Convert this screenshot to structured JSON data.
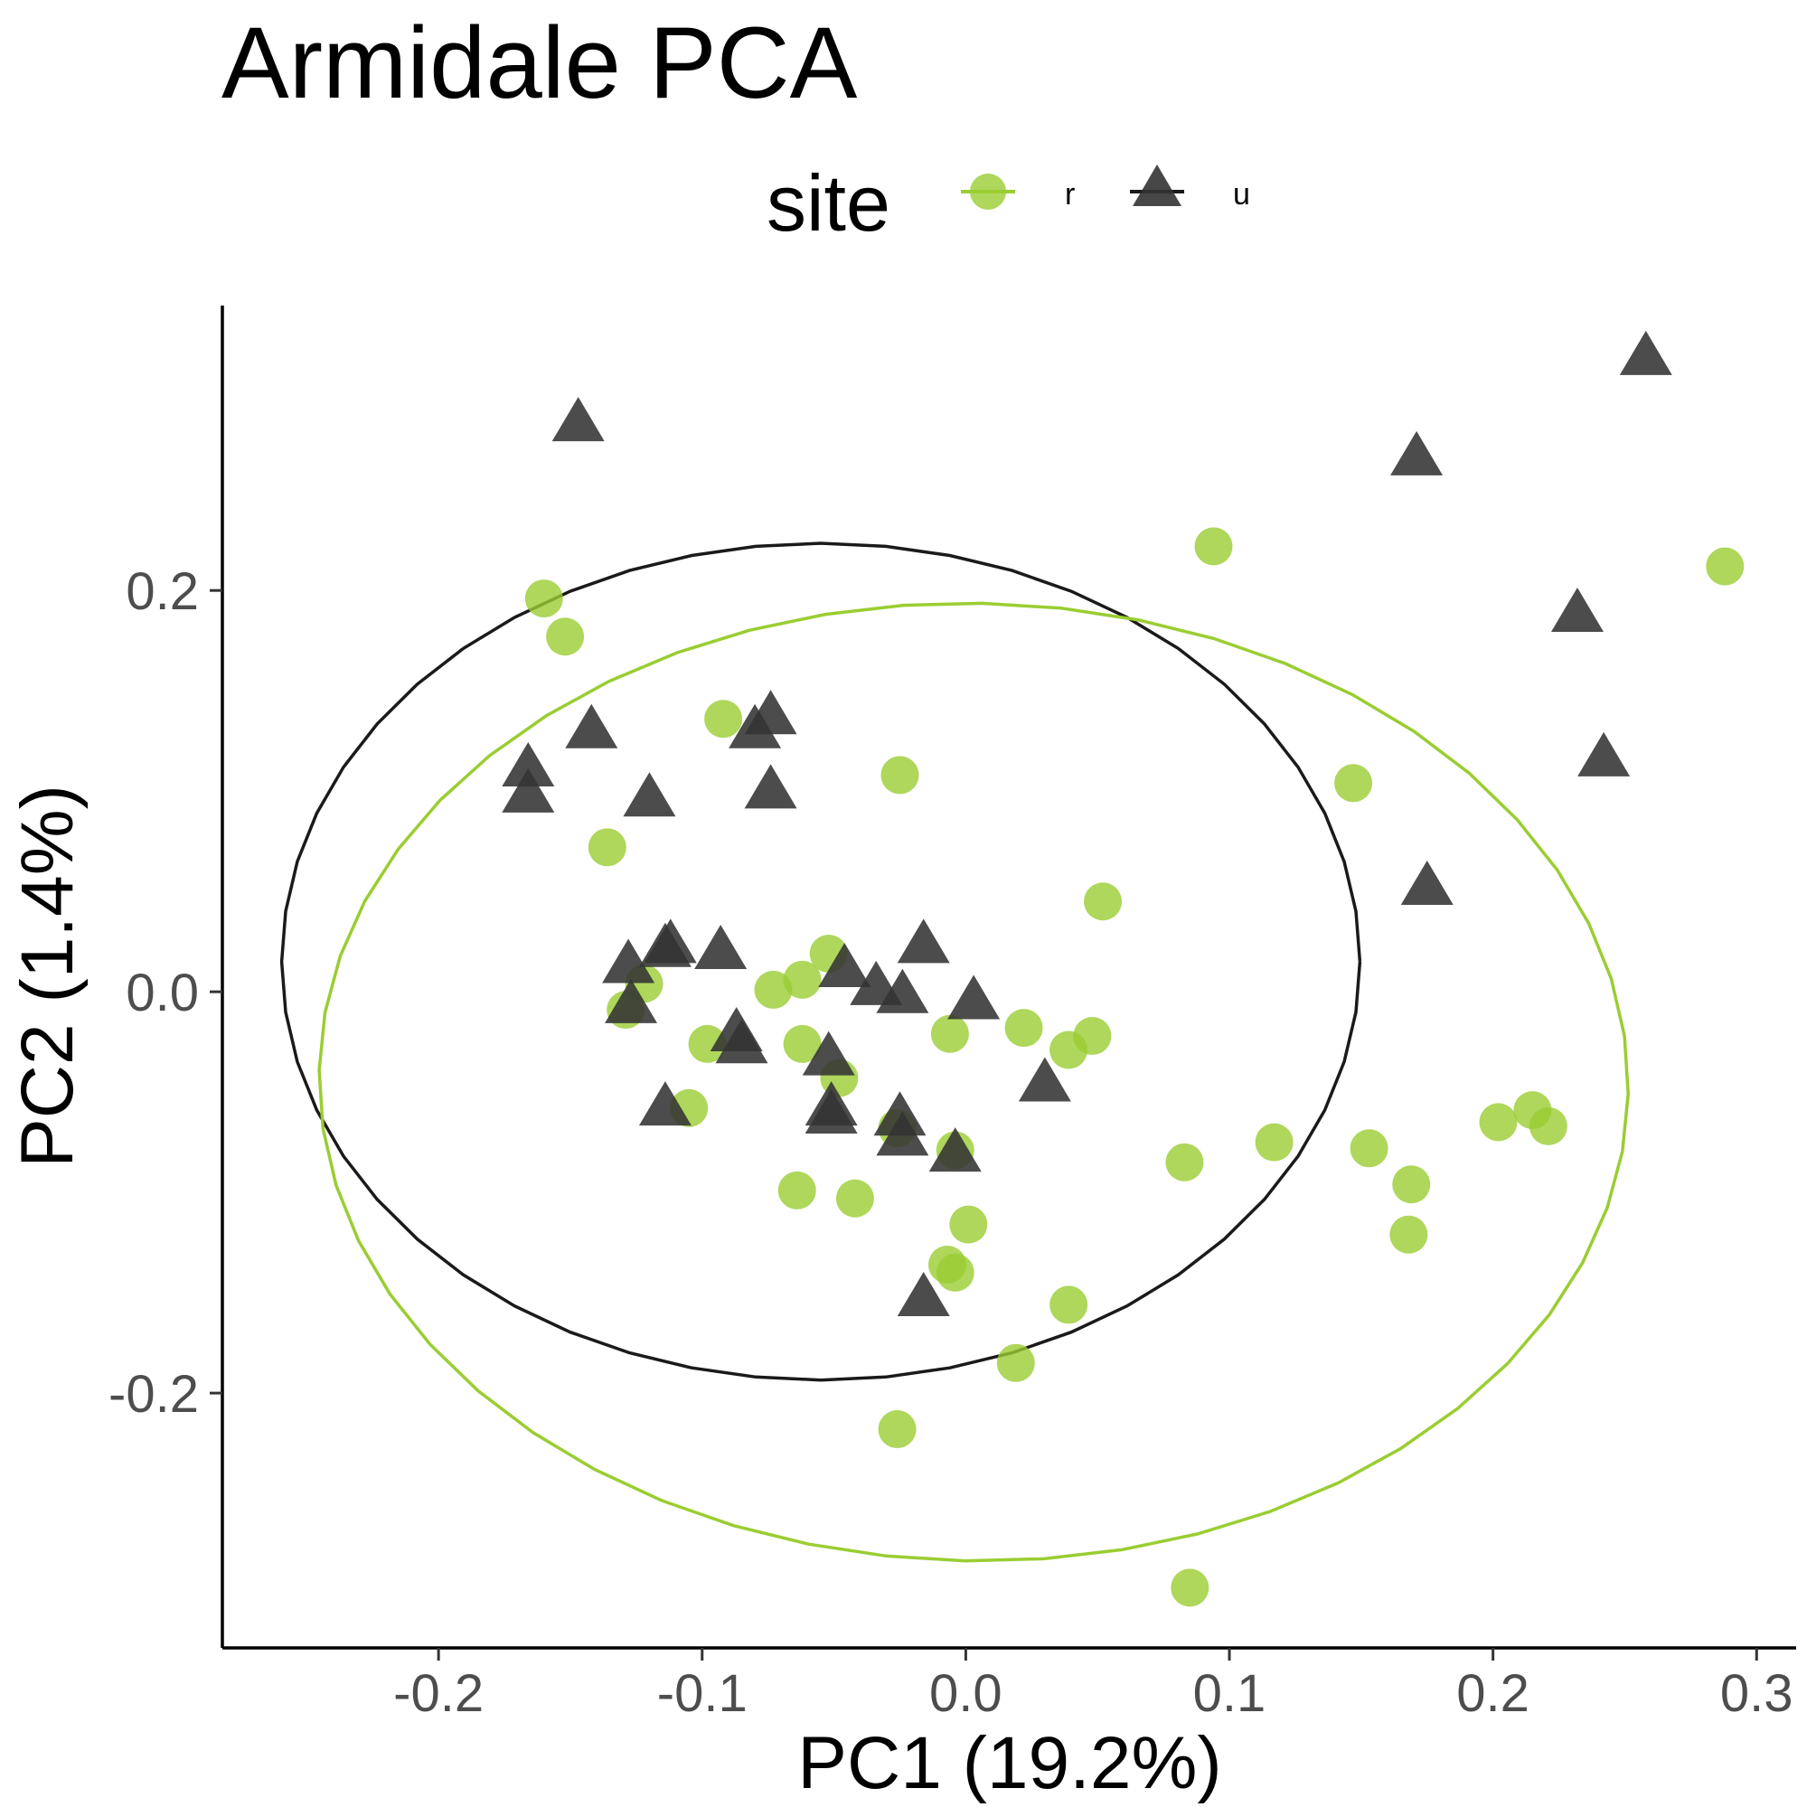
{
  "chart_data": {
    "type": "scatter",
    "title": "Armidale PCA",
    "xlabel": "PC1 (19.2%)",
    "ylabel": "PC2 (1.4%)",
    "xlim": [
      -0.282,
      0.315
    ],
    "ylim": [
      -0.327,
      0.342
    ],
    "xticks": [
      -0.2,
      -0.1,
      0.0,
      0.1,
      0.2,
      0.3
    ],
    "xtick_labels": [
      "-0.2",
      "-0.1",
      "0.0",
      "0.1",
      "0.2",
      "0.3"
    ],
    "yticks": [
      -0.2,
      0.0,
      0.2
    ],
    "ytick_labels": [
      "-0.2",
      "0.0",
      "0.2"
    ],
    "grid": false,
    "legend": {
      "title": "site",
      "position": "top"
    },
    "series": [
      {
        "name": "r",
        "marker": "circle",
        "color": "#9ACD32",
        "points": [
          [
            -0.16,
            0.196
          ],
          [
            -0.152,
            0.177
          ],
          [
            -0.092,
            0.136
          ],
          [
            -0.025,
            0.108
          ],
          [
            -0.136,
            0.072
          ],
          [
            0.094,
            0.222
          ],
          [
            0.147,
            0.104
          ],
          [
            0.288,
            0.212
          ],
          [
            0.052,
            0.045
          ],
          [
            -0.052,
            0.019
          ],
          [
            -0.062,
            0.006
          ],
          [
            -0.073,
            0.001
          ],
          [
            -0.122,
            0.004
          ],
          [
            -0.129,
            -0.009
          ],
          [
            -0.098,
            -0.026
          ],
          [
            -0.062,
            -0.026
          ],
          [
            -0.048,
            -0.043
          ],
          [
            -0.105,
            -0.058
          ],
          [
            -0.006,
            -0.021
          ],
          [
            0.022,
            -0.018
          ],
          [
            0.048,
            -0.022
          ],
          [
            0.039,
            -0.029
          ],
          [
            -0.026,
            -0.068
          ],
          [
            -0.004,
            -0.079
          ],
          [
            -0.064,
            -0.099
          ],
          [
            -0.042,
            -0.103
          ],
          [
            0.001,
            -0.116
          ],
          [
            -0.007,
            -0.136
          ],
          [
            -0.004,
            -0.14
          ],
          [
            0.039,
            -0.156
          ],
          [
            0.019,
            -0.185
          ],
          [
            -0.026,
            -0.218
          ],
          [
            0.083,
            -0.085
          ],
          [
            0.117,
            -0.075
          ],
          [
            0.153,
            -0.078
          ],
          [
            0.169,
            -0.096
          ],
          [
            0.168,
            -0.121
          ],
          [
            0.202,
            -0.065
          ],
          [
            0.215,
            -0.059
          ],
          [
            0.221,
            -0.067
          ],
          [
            0.085,
            -0.297
          ]
        ]
      },
      {
        "name": "u",
        "marker": "triangle",
        "color": "#333333",
        "points": [
          [
            -0.147,
            0.282
          ],
          [
            0.258,
            0.315
          ],
          [
            0.171,
            0.265
          ],
          [
            0.232,
            0.187
          ],
          [
            0.242,
            0.115
          ],
          [
            0.175,
            0.051
          ],
          [
            -0.074,
            0.136
          ],
          [
            -0.08,
            0.129
          ],
          [
            -0.142,
            0.129
          ],
          [
            -0.166,
            0.11
          ],
          [
            -0.166,
            0.097
          ],
          [
            -0.12,
            0.095
          ],
          [
            -0.074,
            0.099
          ],
          [
            -0.128,
            0.012
          ],
          [
            -0.114,
            0.02
          ],
          [
            -0.112,
            0.022
          ],
          [
            -0.093,
            0.019
          ],
          [
            -0.016,
            0.022
          ],
          [
            -0.046,
            0.01
          ],
          [
            -0.034,
            0.001
          ],
          [
            -0.024,
            -0.003
          ],
          [
            0.003,
            -0.006
          ],
          [
            -0.127,
            -0.008
          ],
          [
            -0.087,
            -0.022
          ],
          [
            -0.085,
            -0.028
          ],
          [
            -0.052,
            -0.034
          ],
          [
            -0.114,
            -0.059
          ],
          [
            -0.051,
            -0.059
          ],
          [
            -0.051,
            -0.063
          ],
          [
            0.03,
            -0.047
          ],
          [
            -0.025,
            -0.064
          ],
          [
            -0.024,
            -0.074
          ],
          [
            -0.004,
            -0.082
          ],
          [
            -0.016,
            -0.154
          ]
        ]
      }
    ],
    "ellipses": [
      {
        "series": "u",
        "color": "#1a1a1a",
        "center": [
          -0.055,
          0.015
        ],
        "rx": 0.2045,
        "ry": 0.2085
      },
      {
        "series": "r",
        "color": "#9ACD32",
        "center": [
          0.003,
          -0.045
        ],
        "rx": 0.2485,
        "ry": 0.2385,
        "angle_deg": -8
      }
    ]
  }
}
